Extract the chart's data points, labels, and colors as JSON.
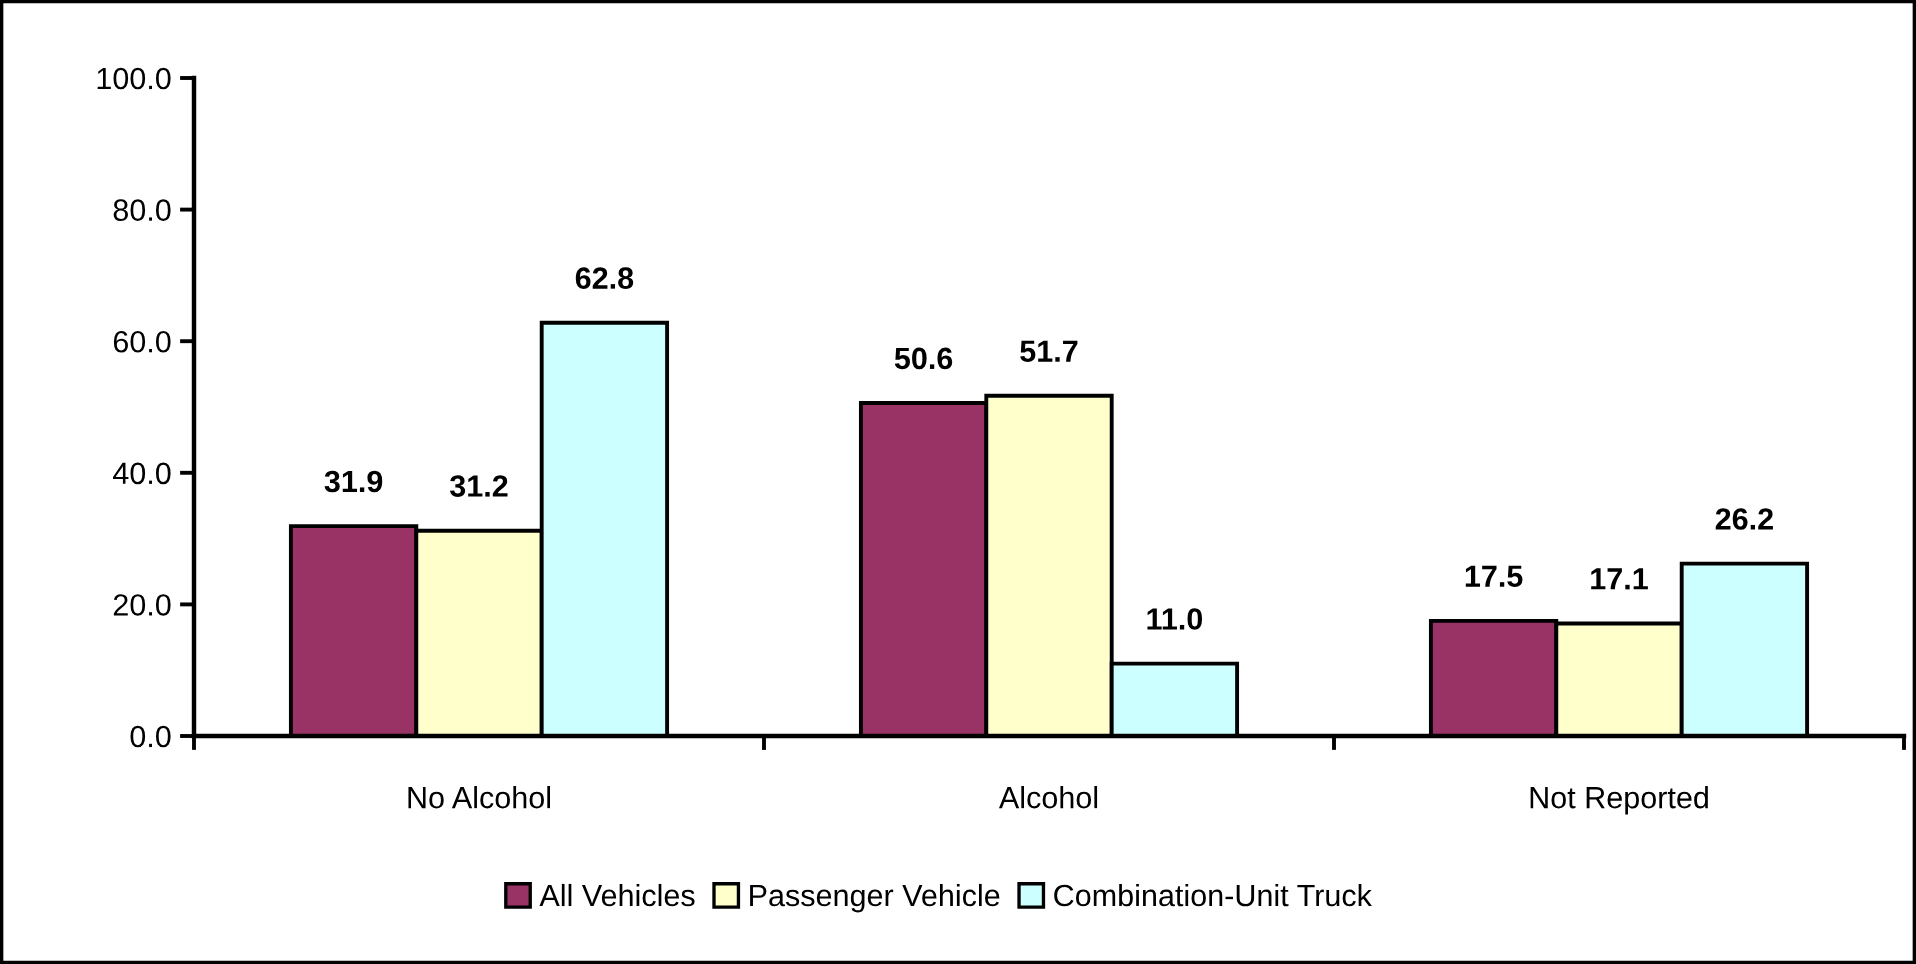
{
  "chart_data": {
    "type": "bar",
    "categories": [
      "No Alcohol",
      "Alcohol",
      "Not Reported"
    ],
    "series": [
      {
        "name": "All Vehicles",
        "color": "#993366",
        "values": [
          31.9,
          50.6,
          17.5
        ],
        "value_labels": [
          "31.9",
          "50.6",
          "17.5"
        ]
      },
      {
        "name": "Passenger Vehicle",
        "color": "#ffffcc",
        "values": [
          31.2,
          51.7,
          17.1
        ],
        "value_labels": [
          "31.2",
          "51.7",
          "17.1"
        ]
      },
      {
        "name": "Combination-Unit Truck",
        "color": "#ccffff",
        "values": [
          62.8,
          11.0,
          26.2
        ],
        "value_labels": [
          "62.8",
          "11.0",
          "26.2"
        ]
      }
    ],
    "ylim": [
      0,
      100
    ],
    "yticks": [
      {
        "value": 0,
        "label": "0.0"
      },
      {
        "value": 20,
        "label": "20.0"
      },
      {
        "value": 40,
        "label": "40.0"
      },
      {
        "value": 60,
        "label": "60.0"
      },
      {
        "value": 80,
        "label": "80.0"
      },
      {
        "value": 100,
        "label": "100.0"
      }
    ],
    "legend": "bottom",
    "grid": false
  }
}
